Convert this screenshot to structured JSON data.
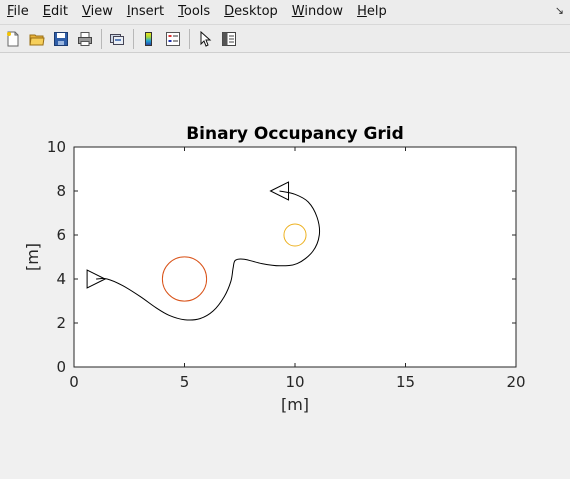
{
  "menu": {
    "items": [
      {
        "label": "File",
        "key": "F",
        "rest": "ile"
      },
      {
        "label": "Edit",
        "key": "E",
        "rest": "dit"
      },
      {
        "label": "View",
        "key": "V",
        "rest": "iew"
      },
      {
        "label": "Insert",
        "key": "I",
        "rest": "nsert"
      },
      {
        "label": "Tools",
        "key": "T",
        "rest": "ools"
      },
      {
        "label": "Desktop",
        "key": "D",
        "rest": "esktop"
      },
      {
        "label": "Window",
        "key": "W",
        "rest": "indow"
      },
      {
        "label": "Help",
        "key": "H",
        "rest": "elp"
      }
    ],
    "dock_glyph": "↘"
  },
  "toolbar": {
    "buttons": [
      "new-figure-icon",
      "open-folder-icon",
      "save-icon",
      "print-icon",
      "link-figure-icon",
      "colorbar-icon",
      "legend-icon",
      "edit-plot-arrow-icon",
      "property-inspector-icon"
    ]
  },
  "colors": {
    "path": "#000000",
    "obstacle_large": "#d95319",
    "obstacle_small": "#edb120"
  },
  "chart_data": {
    "type": "map",
    "title": "Binary Occupancy Grid",
    "xlabel": "[m]",
    "ylabel": "[m]",
    "xlim": [
      0,
      20
    ],
    "ylim": [
      0,
      10
    ],
    "xticks": [
      "0",
      "5",
      "10",
      "15",
      "20"
    ],
    "yticks": [
      "0",
      "2",
      "4",
      "6",
      "8",
      "10"
    ],
    "grid": false,
    "path": [
      [
        1.0,
        4.0
      ],
      [
        1.5,
        4.0
      ],
      [
        2.2,
        3.7
      ],
      [
        3.0,
        3.2
      ],
      [
        3.7,
        2.7
      ],
      [
        4.3,
        2.35
      ],
      [
        5.0,
        2.15
      ],
      [
        5.7,
        2.2
      ],
      [
        6.3,
        2.55
      ],
      [
        6.8,
        3.2
      ],
      [
        7.1,
        3.9
      ],
      [
        7.2,
        4.5
      ],
      [
        7.3,
        4.85
      ],
      [
        7.7,
        4.9
      ],
      [
        8.5,
        4.7
      ],
      [
        9.3,
        4.6
      ],
      [
        10.1,
        4.7
      ],
      [
        10.8,
        5.25
      ],
      [
        11.1,
        6.0
      ],
      [
        11.0,
        6.8
      ],
      [
        10.6,
        7.5
      ],
      [
        10.0,
        7.85
      ],
      [
        9.3,
        8.0
      ]
    ],
    "start_pose": {
      "x": 1.0,
      "y": 4.0,
      "theta_deg": 0
    },
    "goal_pose": {
      "x": 9.3,
      "y": 8.0,
      "theta_deg": 180
    },
    "obstacles": [
      {
        "name": "large-obstacle",
        "x": 5.0,
        "y": 4.0,
        "r": 1.0,
        "color": "#d95319"
      },
      {
        "name": "small-obstacle",
        "x": 10.0,
        "y": 6.0,
        "r": 0.5,
        "color": "#edb120"
      }
    ]
  }
}
